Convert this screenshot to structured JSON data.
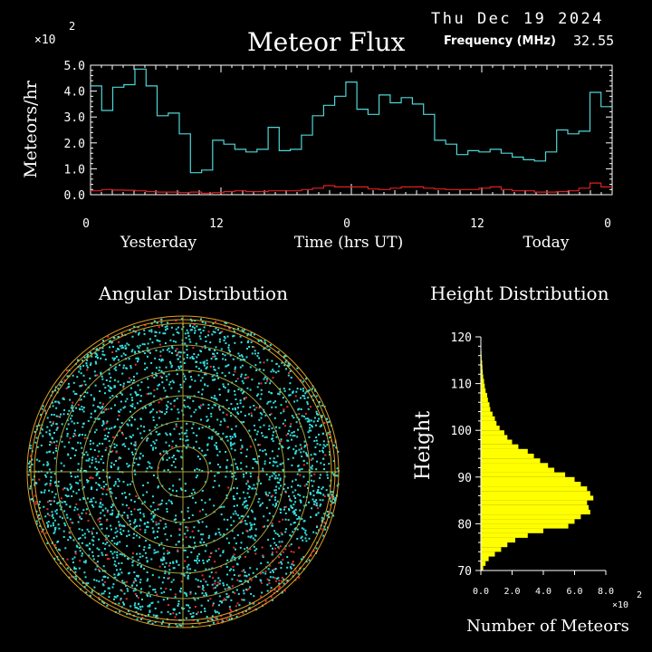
{
  "header": {
    "date": "Thu Dec 19 2024",
    "title": "Meteor Flux",
    "frequency_label": "Frequency (MHz)",
    "frequency_value": "32.55",
    "y_multiplier": "×10",
    "y_multiplier_exp": "2"
  },
  "colors": {
    "flux_line": "#4fd6d6",
    "baseline_line": "#e02020",
    "axis": "#ffffff",
    "height_bars": "#ffff00",
    "polar_points": "#33e0e0",
    "polar_points_red": "#e03030",
    "polar_ring": "#e0a020",
    "polar_inner_ring": "#a0a040"
  },
  "chart_data": [
    {
      "type": "line",
      "title": "Meteor Flux",
      "ylabel": "Meteors/hr",
      "xlabel": "Time (hrs UT)",
      "ylim": [
        0,
        5
      ],
      "yticks": [
        "0.0",
        "1.0",
        "2.0",
        "3.0",
        "4.0",
        "5.0"
      ],
      "xticks": [
        "0",
        "12",
        "0",
        "12",
        "0"
      ],
      "x_section_labels": [
        "Yesterday",
        "Time (hrs UT)",
        "Today"
      ],
      "xlim": [
        0,
        48
      ],
      "series": [
        {
          "style": "step",
          "values": [
            4.2,
            3.25,
            4.15,
            4.25,
            4.85,
            4.2,
            3.05,
            3.15,
            2.35,
            0.85,
            0.95,
            2.1,
            1.95,
            1.75,
            1.65,
            1.75,
            2.6,
            1.7,
            1.75,
            2.3,
            3.05,
            3.45,
            3.8,
            4.35,
            3.3,
            3.1,
            3.85,
            3.55,
            3.75,
            3.5,
            3.1,
            2.1,
            1.95,
            1.55,
            1.7,
            1.65,
            1.75,
            1.6,
            1.45,
            1.35,
            1.3,
            1.65,
            2.5,
            2.35,
            2.45,
            3.95,
            3.4
          ]
        },
        {
          "style": "step",
          "values": [
            0.15,
            0.2,
            0.18,
            0.17,
            0.15,
            0.12,
            0.1,
            0.1,
            0.08,
            0.1,
            0.06,
            0.08,
            0.12,
            0.15,
            0.12,
            0.12,
            0.15,
            0.15,
            0.15,
            0.2,
            0.25,
            0.35,
            0.3,
            0.3,
            0.3,
            0.22,
            0.2,
            0.25,
            0.3,
            0.3,
            0.25,
            0.22,
            0.2,
            0.2,
            0.2,
            0.25,
            0.3,
            0.2,
            0.15,
            0.15,
            0.1,
            0.1,
            0.12,
            0.15,
            0.25,
            0.45,
            0.3
          ]
        }
      ]
    },
    {
      "type": "scatter",
      "title": "Angular Distribution",
      "projection": "polar"
    },
    {
      "type": "bar",
      "orientation": "horizontal",
      "title": "Height Distribution",
      "ylabel": "Height",
      "xlabel": "Number of Meteors",
      "x_multiplier": "×10",
      "x_multiplier_exp": "2",
      "ylim": [
        70,
        120
      ],
      "yticks": [
        "70",
        "80",
        "90",
        "100",
        "110",
        "120"
      ],
      "xlim": [
        0,
        800
      ],
      "xticks": [
        "0.0",
        "2.0",
        "4.0",
        "6.0",
        "8.0"
      ],
      "heights": [
        70,
        71,
        72,
        73,
        74,
        75,
        76,
        77,
        78,
        79,
        80,
        81,
        82,
        83,
        84,
        85,
        86,
        87,
        88,
        89,
        90,
        91,
        92,
        93,
        94,
        95,
        96,
        97,
        98,
        99,
        100,
        101,
        102,
        103,
        104,
        105,
        106,
        107,
        108,
        109,
        110,
        111,
        112,
        113,
        114,
        115,
        116,
        117,
        118,
        119
      ],
      "values": [
        15,
        30,
        50,
        90,
        130,
        170,
        220,
        300,
        400,
        560,
        600,
        640,
        700,
        690,
        680,
        720,
        700,
        680,
        640,
        600,
        540,
        470,
        430,
        380,
        340,
        300,
        240,
        200,
        170,
        150,
        120,
        100,
        90,
        75,
        60,
        55,
        45,
        40,
        30,
        25,
        20,
        15,
        12,
        10,
        8,
        5,
        4,
        3,
        2,
        1
      ]
    }
  ]
}
